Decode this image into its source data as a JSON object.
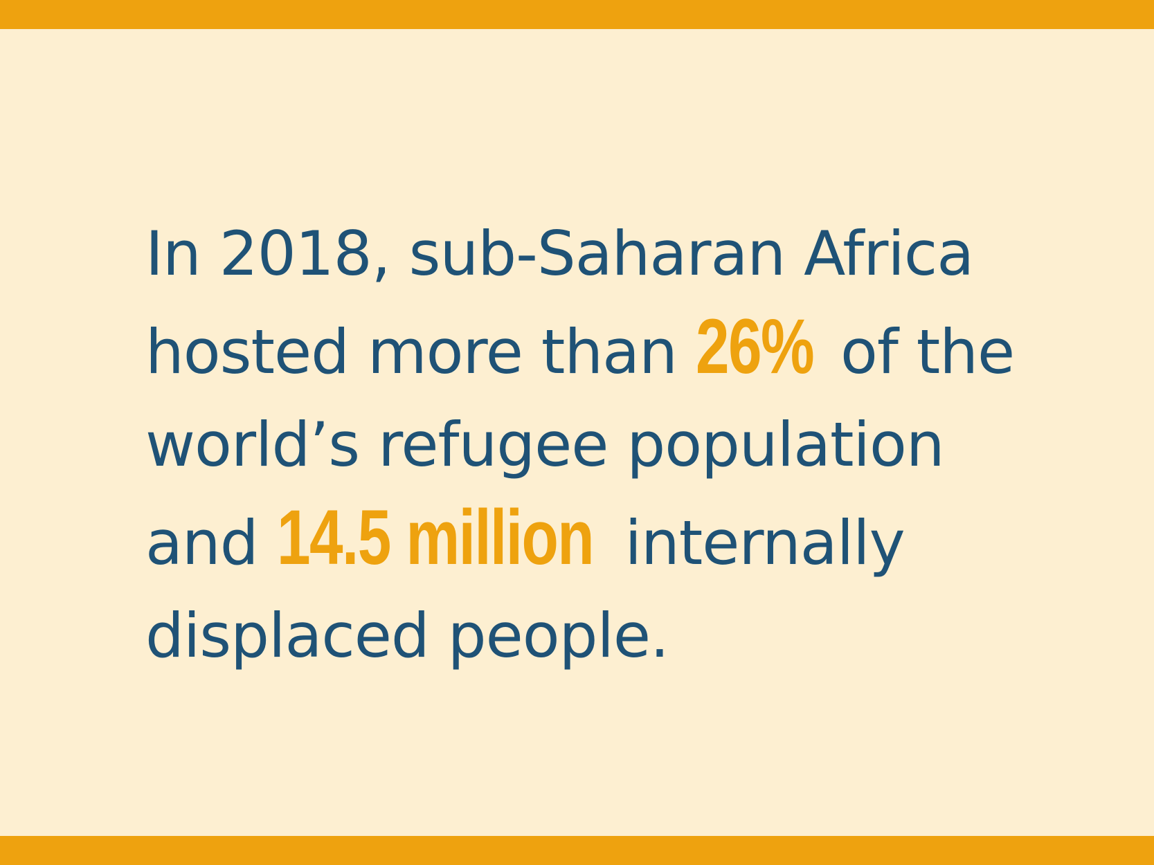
{
  "colors": {
    "background": "#FDEFD1",
    "accent": "#EEA20F",
    "text": "#1F5276"
  },
  "statement": {
    "line1": "In 2018, sub-Saharan Africa",
    "line2_before": "hosted more than",
    "highlight_percent": "26%",
    "line2_after": "of the",
    "line3": "world’s refugee population",
    "line4_before": "and",
    "highlight_million": "14.5 million",
    "line4_after": "internally",
    "line5": "displaced people."
  }
}
